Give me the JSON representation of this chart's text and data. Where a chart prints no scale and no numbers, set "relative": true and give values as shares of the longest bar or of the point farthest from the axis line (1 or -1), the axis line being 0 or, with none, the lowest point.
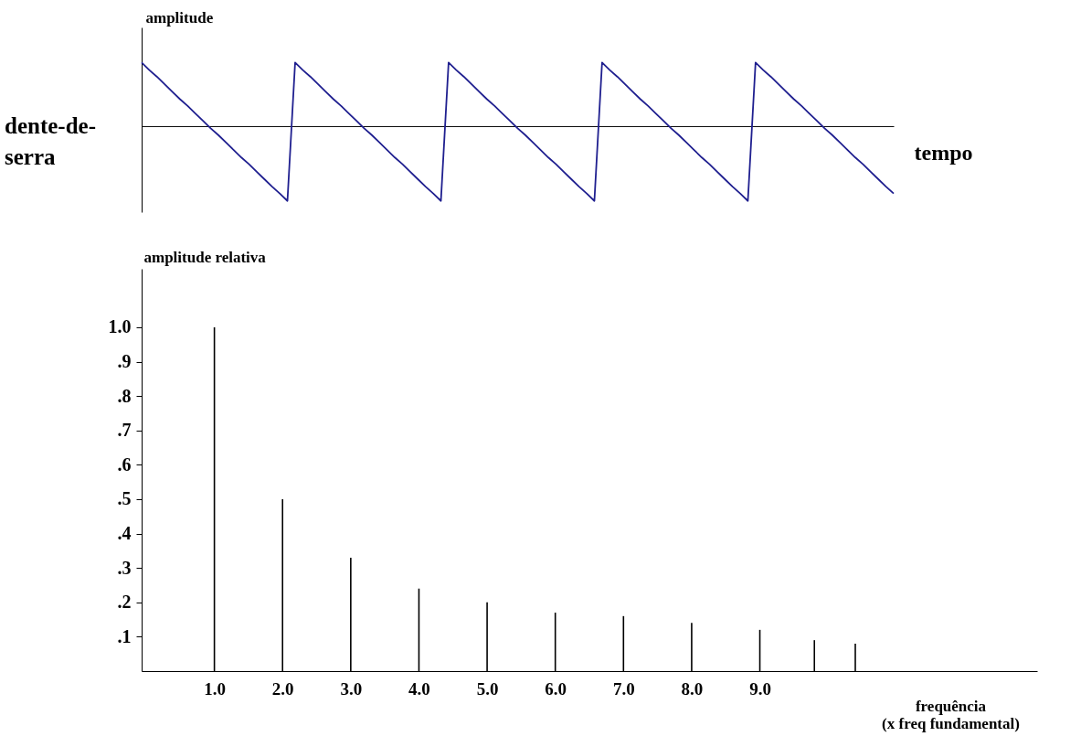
{
  "chart_data": [
    {
      "type": "line",
      "title": "dente-de-\nserra",
      "ylabel": "amplitude",
      "xlabel": "tempo",
      "relative": true,
      "tick_labels": false,
      "categories": [
        null,
        null,
        null,
        null,
        null,
        null,
        null,
        null,
        null,
        null,
        null,
        null,
        null,
        null,
        null,
        null,
        null,
        null,
        null,
        null,
        null,
        null,
        null,
        null,
        null,
        null,
        null,
        null,
        null,
        null,
        null,
        null,
        null,
        null,
        null,
        null,
        null,
        null,
        null,
        null,
        null,
        null,
        null,
        null,
        null,
        null,
        null,
        null,
        null,
        null,
        null,
        null,
        null,
        null,
        null,
        null,
        null,
        null,
        null,
        null,
        null,
        null,
        null,
        null,
        null,
        null,
        null,
        null,
        null,
        null,
        null,
        null,
        null,
        null,
        null,
        null,
        null,
        null,
        null,
        null,
        null,
        null,
        null,
        null,
        null,
        null,
        null,
        null,
        null,
        null,
        null,
        null,
        null,
        null,
        null,
        null,
        null,
        null,
        null
      ],
      "series": [
        {
          "color": "#1f1f8f",
          "values": [
            0.85,
            0.75,
            0.66,
            0.56,
            0.46,
            0.36,
            0.27,
            0.17,
            0.07,
            -0.03,
            -0.12,
            -0.22,
            -0.32,
            -0.42,
            -0.51,
            -0.61,
            -0.71,
            -0.81,
            -0.9,
            -1,
            0.85,
            0.75,
            0.66,
            0.56,
            0.46,
            0.36,
            0.27,
            0.17,
            0.07,
            -0.03,
            -0.12,
            -0.22,
            -0.32,
            -0.42,
            -0.51,
            -0.61,
            -0.71,
            -0.81,
            -0.9,
            -1,
            0.85,
            0.75,
            0.66,
            0.56,
            0.46,
            0.36,
            0.27,
            0.17,
            0.07,
            -0.03,
            -0.12,
            -0.22,
            -0.32,
            -0.42,
            -0.51,
            -0.61,
            -0.71,
            -0.81,
            -0.9,
            -1,
            0.85,
            0.75,
            0.66,
            0.56,
            0.46,
            0.36,
            0.27,
            0.17,
            0.07,
            -0.03,
            -0.12,
            -0.22,
            -0.32,
            -0.42,
            -0.51,
            -0.61,
            -0.71,
            -0.81,
            -0.9,
            -1,
            0.85,
            0.75,
            0.66,
            0.56,
            0.46,
            0.36,
            0.27,
            0.17,
            0.07,
            -0.03,
            -0.12,
            -0.22,
            -0.32,
            -0.42,
            -0.51,
            -0.61,
            -0.71,
            -0.81,
            -0.9
          ]
        }
      ]
    },
    {
      "type": "bar",
      "ylabel": "amplitude relativa",
      "xlabel": "frequência\n(x freq fundamental)",
      "x": [
        1,
        2,
        3,
        4,
        5,
        6,
        7,
        8,
        9,
        9.8,
        10.4
      ],
      "series": [
        {
          "color": "#000000",
          "values": [
            1.0,
            0.5,
            0.33,
            0.24,
            0.2,
            0.17,
            0.16,
            0.14,
            0.12,
            0.09,
            0.08
          ]
        }
      ],
      "xlim": [
        0,
        13
      ],
      "ylim": [
        0,
        1.17
      ],
      "xticks": [
        {
          "value": 1,
          "label": "1.0"
        },
        {
          "value": 2,
          "label": "2.0"
        },
        {
          "value": 3,
          "label": "3.0"
        },
        {
          "value": 4,
          "label": "4.0"
        },
        {
          "value": 5,
          "label": "5.0"
        },
        {
          "value": 6,
          "label": "6.0"
        },
        {
          "value": 7,
          "label": "7.0"
        },
        {
          "value": 8,
          "label": "8.0"
        },
        {
          "value": 9,
          "label": "9.0"
        }
      ],
      "yticks": [
        {
          "value": 0.1,
          "label": ".1"
        },
        {
          "value": 0.2,
          "label": ".2"
        },
        {
          "value": 0.3,
          "label": ".3"
        },
        {
          "value": 0.4,
          "label": ".4"
        },
        {
          "value": 0.5,
          "label": ".5"
        },
        {
          "value": 0.6,
          "label": ".6"
        },
        {
          "value": 0.7,
          "label": ".7"
        },
        {
          "value": 0.8,
          "label": ".8"
        },
        {
          "value": 0.9,
          "label": ".9"
        },
        {
          "value": 1.0,
          "label": "1.0"
        }
      ],
      "grid": false
    }
  ]
}
